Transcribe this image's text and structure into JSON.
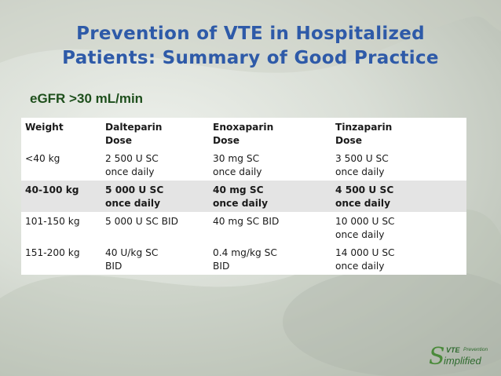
{
  "title_lines": [
    "Prevention of  VTE in Hospitalized",
    "Patients: Summary of Good Practice"
  ],
  "subtitle": "eGFR >30 mL/min",
  "table": {
    "headers": [
      [
        "Weight"
      ],
      [
        "Dalteparin",
        "Dose"
      ],
      [
        "Enoxaparin",
        "Dose"
      ],
      [
        "Tinzaparin",
        "Dose"
      ]
    ],
    "rows": [
      [
        [
          "<40 kg"
        ],
        [
          "2 500 U SC",
          "once daily"
        ],
        [
          "30 mg SC",
          "once daily"
        ],
        [
          "3 500 U SC",
          "once daily"
        ]
      ],
      [
        [
          "40-100 kg"
        ],
        [
          "5 000 U SC",
          "once daily"
        ],
        [
          "40 mg SC",
          "once daily"
        ],
        [
          "4 500 U SC",
          "once daily"
        ]
      ],
      [
        [
          "101-150 kg"
        ],
        [
          "5 000 U SC BID"
        ],
        [
          "40 mg SC BID"
        ],
        [
          "10 000 U SC",
          "once daily"
        ]
      ],
      [
        [
          "151-200 kg"
        ],
        [
          "40 U/kg SC",
          "BID"
        ],
        [
          "0.4 mg/kg SC",
          "BID"
        ],
        [
          "14 000 U SC",
          "once daily"
        ]
      ]
    ]
  },
  "logo": {
    "big_letter": "S",
    "vte": "VTE",
    "prevention": "Prevention",
    "simplified": "implified"
  }
}
